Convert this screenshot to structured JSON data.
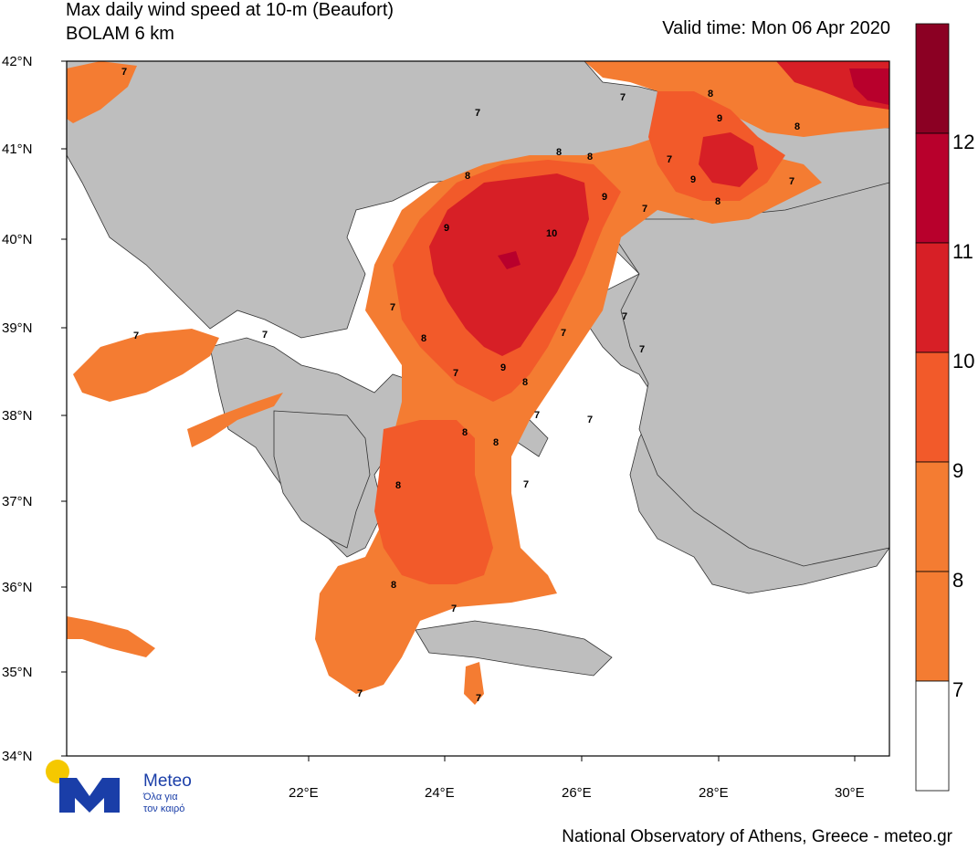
{
  "header": {
    "title_line1": "Max daily wind speed at 10-m (Beaufort)",
    "title_line2": "BOLAM 6 km",
    "valid_time": "Valid time: Mon 06 Apr 2020"
  },
  "footer": {
    "credit": "National Observatory of Athens, Greece - meteo.gr"
  },
  "logo": {
    "name": "Meteo",
    "tagline_1": "Όλα για",
    "tagline_2": "τον καιρό",
    "icon": "sun-and-M-logo",
    "brand_color": "#1a3ea8",
    "sun_color": "#f5c800"
  },
  "axes": {
    "y_ticks": [
      "42°N",
      "41°N",
      "40°N",
      "39°N",
      "38°N",
      "37°N",
      "36°N",
      "35°N",
      "34°N"
    ],
    "x_ticks": [
      "22°E",
      "24°E",
      "26°E",
      "28°E",
      "30°E"
    ]
  },
  "colorbar": {
    "labels": [
      "12",
      "11",
      "10",
      "9",
      "8",
      "7"
    ],
    "colors": [
      "#8b0023",
      "#b8002c",
      "#d71f26",
      "#f25a2a",
      "#f47c32",
      "#ffffff"
    ]
  },
  "map": {
    "land_color": "#bebebe",
    "sea_color": "#ffffff",
    "contour_labels": [
      "7",
      "7",
      "8",
      "7",
      "8",
      "8",
      "9",
      "8",
      "9",
      "8",
      "7",
      "8",
      "9",
      "10",
      "9",
      "7",
      "7",
      "7",
      "8",
      "9",
      "7",
      "7",
      "7",
      "8",
      "7",
      "8",
      "7",
      "8",
      "8",
      "7",
      "7",
      "7",
      "7",
      "8",
      "7",
      "7",
      "7"
    ]
  }
}
